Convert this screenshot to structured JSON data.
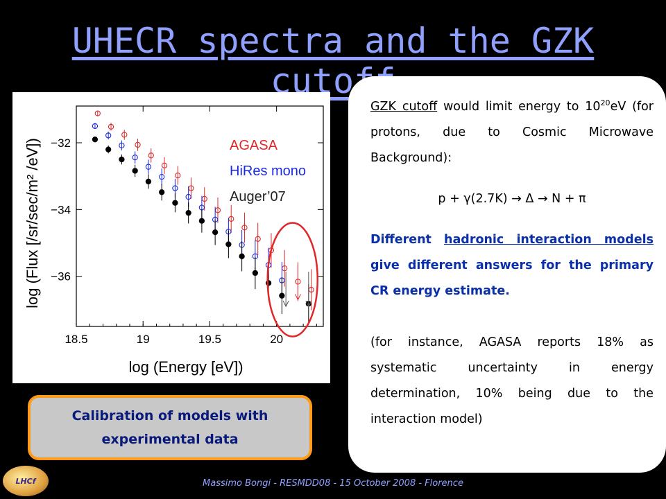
{
  "slide": {
    "title": "UHECR spectra and the GZK cutoff",
    "footer": "Massimo Bongi - RESMDD08 - 15 October 2008 - Florence",
    "logo_text": "LHCf",
    "callout": "Calibration of models with experimental data"
  },
  "panel": {
    "p1_link": "GZK cutoff",
    "p1_a": " would limit energy to 10",
    "p1_sup": "20",
    "p1_b": "eV (for protons, due to Cosmic Microwave Background):",
    "formula": "p + γ(2.7K) → Δ → N + π",
    "p2_a": "Different ",
    "p2_link": "hadronic interaction models",
    "p2_b": " give different answers for the primary CR energy estimate.",
    "p3": "(for instance, AGASA reports 18% as systematic uncertainty in energy determination, 10% being due to the interaction model)"
  },
  "colors": {
    "agasa": "#e0282a",
    "hires": "#1a2ae0",
    "auger": "#000000",
    "circle": "#e0282a"
  },
  "chart_data": {
    "type": "scatter",
    "xlabel": "log (Energy  [eV])",
    "ylabel": "log (Flux [/sr/sec/m² /eV])",
    "xlim": [
      18.5,
      20.35
    ],
    "ylim": [
      -37.5,
      -30.9
    ],
    "xticks": [
      "18.5",
      "19",
      "19.5",
      "20"
    ],
    "xtick_values": [
      18.5,
      19.0,
      19.5,
      20.0
    ],
    "yticks": [
      "−32",
      "−34",
      "−36"
    ],
    "ytick_values": [
      -32,
      -34,
      -36
    ],
    "legend": [
      "AGASA",
      "HiRes mono",
      "Auger’07"
    ],
    "legend_position": "top-right",
    "series": [
      {
        "name": "AGASA",
        "marker": "open-circle",
        "x": [
          18.66,
          18.76,
          18.86,
          18.96,
          19.06,
          19.16,
          19.26,
          19.36,
          19.46,
          19.56,
          19.66,
          19.76,
          19.86,
          19.96,
          20.06,
          20.16,
          20.26
        ],
        "y": [
          -31.12,
          -31.52,
          -31.76,
          -32.06,
          -32.38,
          -32.68,
          -32.98,
          -33.36,
          -33.68,
          -34.02,
          -34.28,
          -34.54,
          -34.88,
          -35.22,
          -35.76,
          -36.16,
          -36.4
        ],
        "upper_limits_x": [
          20.16
        ],
        "upper_limits_y": [
          -36.7
        ]
      },
      {
        "name": "HiRes mono",
        "marker": "open-circle",
        "x": [
          18.64,
          18.74,
          18.84,
          18.94,
          19.04,
          19.14,
          19.24,
          19.34,
          19.44,
          19.54,
          19.64,
          19.74,
          19.84,
          19.94,
          20.04
        ],
        "y": [
          -31.5,
          -31.78,
          -32.08,
          -32.44,
          -32.72,
          -33.02,
          -33.36,
          -33.62,
          -33.94,
          -34.3,
          -34.66,
          -35.06,
          -35.4,
          -35.66,
          -36.12
        ]
      },
      {
        "name": "Auger’07",
        "marker": "filled-circle",
        "x": [
          18.64,
          18.74,
          18.84,
          18.94,
          19.04,
          19.14,
          19.24,
          19.34,
          19.44,
          19.54,
          19.64,
          19.74,
          19.84,
          19.94,
          20.04,
          20.24
        ],
        "y": [
          -31.9,
          -32.2,
          -32.5,
          -32.84,
          -33.16,
          -33.48,
          -33.8,
          -34.1,
          -34.34,
          -34.68,
          -35.04,
          -35.4,
          -35.9,
          -36.2,
          -36.58,
          -36.82
        ],
        "upper_limits_x": [
          20.07,
          20.24
        ],
        "upper_limits_y": [
          -36.9,
          -36.9
        ]
      }
    ]
  }
}
